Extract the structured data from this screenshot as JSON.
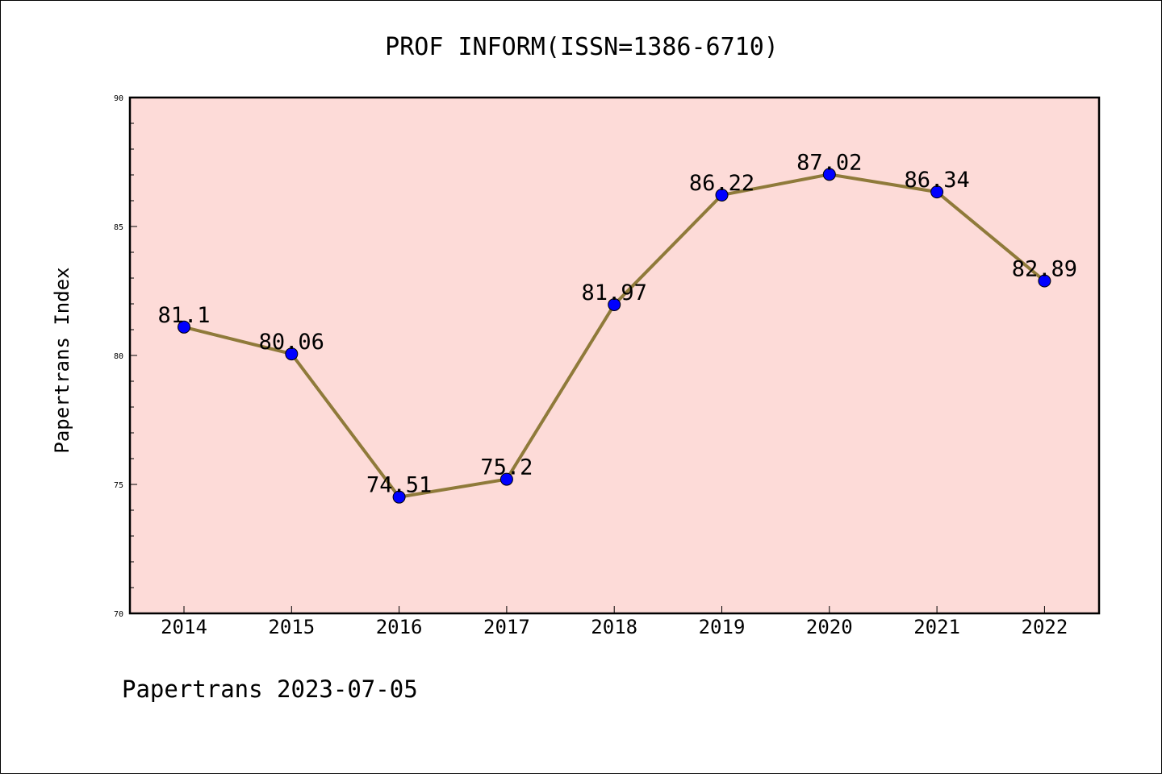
{
  "chart_data": {
    "type": "line",
    "title": "PROF INFORM(ISSN=1386-6710)",
    "ylabel": "Papertrans Index",
    "xlabel": "",
    "categories": [
      "2014",
      "2015",
      "2016",
      "2017",
      "2018",
      "2019",
      "2020",
      "2021",
      "2022"
    ],
    "values": [
      81.1,
      80.06,
      74.51,
      75.2,
      81.97,
      86.22,
      87.02,
      86.34,
      82.89
    ],
    "data_labels": [
      "81.1",
      "80.06",
      "74.51",
      "75.2",
      "81.97",
      "86.22",
      "87.02",
      "86.34",
      "82.89"
    ],
    "ylim": [
      70,
      90
    ],
    "yticks": [
      70,
      75,
      80,
      85,
      90
    ],
    "ytick_labels": [
      "70",
      "75",
      "80",
      "85",
      "90"
    ],
    "grid": false,
    "colors": {
      "plot_background": "#fddbd8",
      "line": "#8f7a3a",
      "marker": "#0000ff"
    }
  },
  "footer": "Papertrans 2023-07-05"
}
